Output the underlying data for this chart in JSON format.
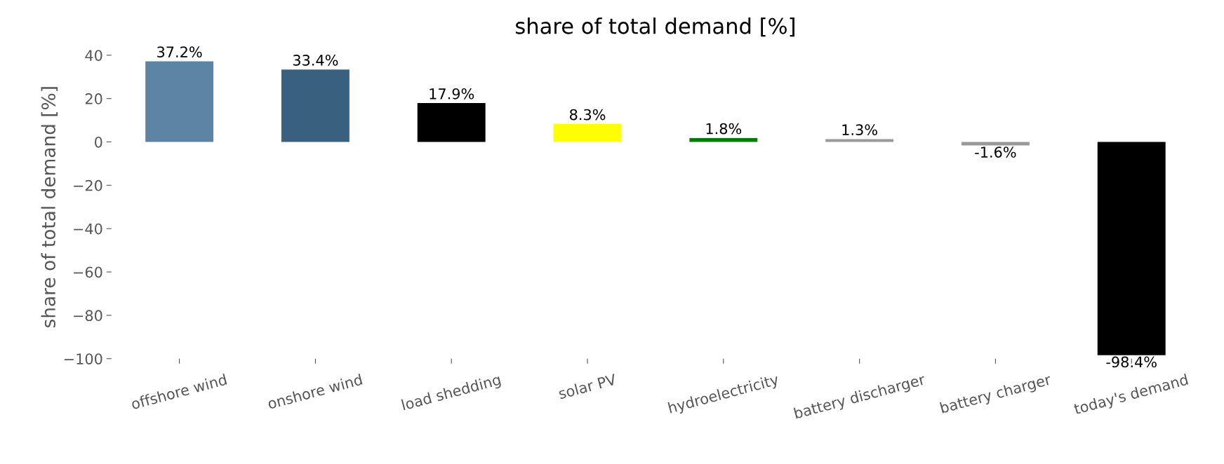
{
  "chart_data": {
    "type": "bar",
    "title": "share of total demand [%]",
    "ylabel": "share of total demand [%]",
    "categories": [
      "offshore wind",
      "onshore wind",
      "load shedding",
      "solar PV",
      "hydroelectricity",
      "battery discharger",
      "battery charger",
      "today's demand"
    ],
    "values": [
      37.2,
      33.4,
      17.9,
      8.3,
      1.8,
      1.3,
      -1.6,
      -98.4
    ],
    "colors": [
      "#5e84a5",
      "#3a6080",
      "#000000",
      "#ffff00",
      "#008000",
      "#999999",
      "#999999",
      "#000000"
    ],
    "value_labels": [
      "37.2%",
      "33.4%",
      "17.9%",
      "8.3%",
      "1.8%",
      "1.3%",
      "-1.6%",
      "-98.4%"
    ],
    "ylim": [
      -100,
      40
    ],
    "yticks": [
      {
        "value": -100,
        "label": "−100"
      },
      {
        "value": -80,
        "label": "−80"
      },
      {
        "value": -60,
        "label": "−60"
      },
      {
        "value": -40,
        "label": "−40"
      },
      {
        "value": -20,
        "label": "−20"
      },
      0,
      20,
      40
    ],
    "grid": false,
    "legend": false
  }
}
